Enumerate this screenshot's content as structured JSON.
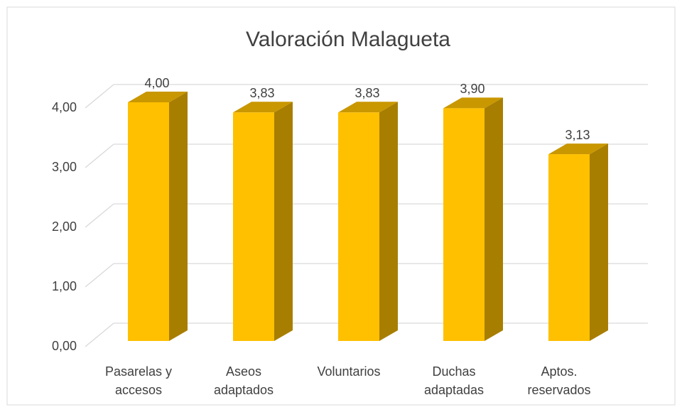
{
  "chart_data": {
    "type": "bar3d",
    "title": "Valoración Malagueta",
    "categories": [
      "Pasarelas y accesos",
      "Aseos adaptados",
      "Voluntarios",
      "Duchas adaptadas",
      "Aptos. reservados"
    ],
    "values": [
      4.0,
      3.83,
      3.83,
      3.9,
      3.13
    ],
    "value_labels": [
      "4,00",
      "3,83",
      "3,83",
      "3,90",
      "3,13"
    ],
    "color": "#ffc000",
    "ylim": [
      0,
      4
    ],
    "yticks": [
      {
        "value": 0,
        "label": "0,00"
      },
      {
        "value": 1,
        "label": "1,00"
      },
      {
        "value": 2,
        "label": "2,00"
      },
      {
        "value": 3,
        "label": "3,00"
      },
      {
        "value": 4,
        "label": "4,00"
      }
    ],
    "grid": true
  }
}
